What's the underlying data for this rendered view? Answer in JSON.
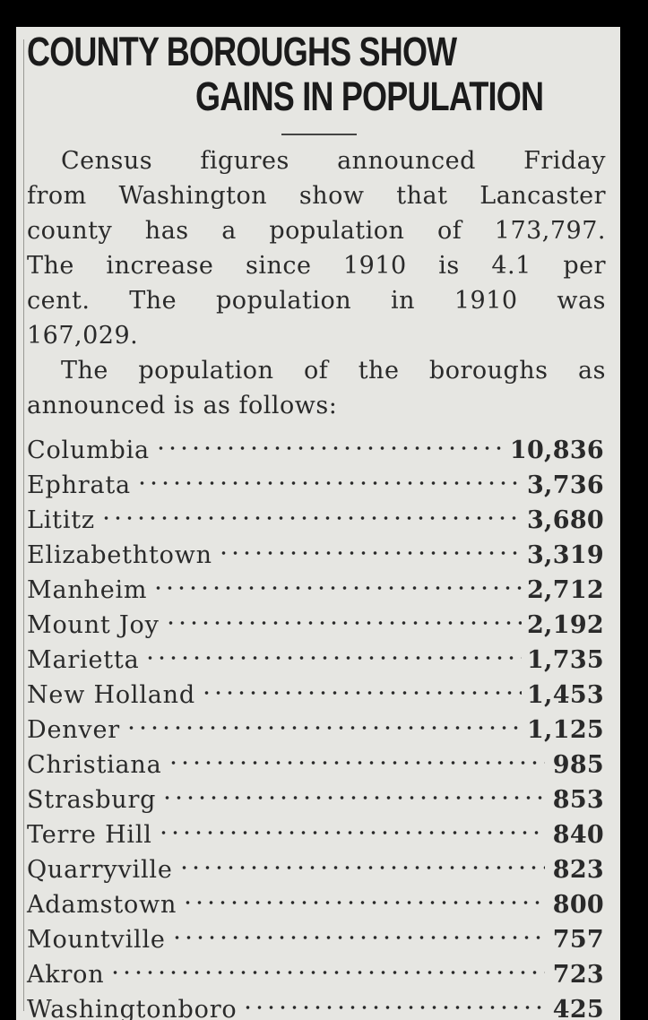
{
  "article": {
    "headline_line1": "COUNTY BOROUGHS SHOW",
    "headline_line2": "GAINS IN POPULATION",
    "paragraph1_lines": [
      "Census figures announced Friday",
      "from Washington show that Lancaster",
      "county has a population of 173,797.",
      "The increase since 1910 is 4.1 per",
      "cent. The population in 1910 was",
      "167,029."
    ],
    "paragraph2_lines": [
      "The population of the boroughs as",
      "announced is as follows:"
    ],
    "boroughs": [
      {
        "name": "Columbia",
        "population": "10,836"
      },
      {
        "name": "Ephrata",
        "population": "3,736"
      },
      {
        "name": "Lititz",
        "population": "3,680"
      },
      {
        "name": "Elizabethtown",
        "population": "3,319"
      },
      {
        "name": "Manheim",
        "population": "2,712"
      },
      {
        "name": "Mount Joy",
        "population": "2,192"
      },
      {
        "name": "Marietta",
        "population": "1,735"
      },
      {
        "name": "New Holland",
        "population": "1,453"
      },
      {
        "name": "Denver",
        "population": "1,125"
      },
      {
        "name": "Christiana",
        "population": "985"
      },
      {
        "name": "Strasburg",
        "population": "853"
      },
      {
        "name": "Terre Hill",
        "population": "840"
      },
      {
        "name": "Quarryville",
        "population": "823"
      },
      {
        "name": "Adamstown",
        "population": "800"
      },
      {
        "name": "Mountville",
        "population": "757"
      },
      {
        "name": "Akron",
        "population": "723"
      },
      {
        "name": "Washingtonboro",
        "population": "425"
      }
    ]
  },
  "colors": {
    "paper": "#e6e6e2",
    "ink": "#2a2a2a",
    "border": "#000000"
  }
}
